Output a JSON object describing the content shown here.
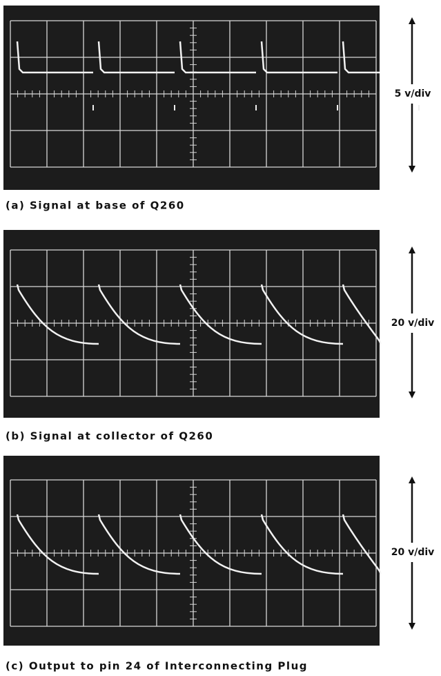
{
  "panels": [
    {
      "scale": "5 v/div",
      "caption": "(a)  Signal at base of Q260"
    },
    {
      "scale": "20 v/div",
      "caption": "(b)  Signal at collector of Q260"
    },
    {
      "scale": "20 v/div",
      "caption": "(c)  Output to pin 24 of Interconnecting Plug"
    }
  ]
}
